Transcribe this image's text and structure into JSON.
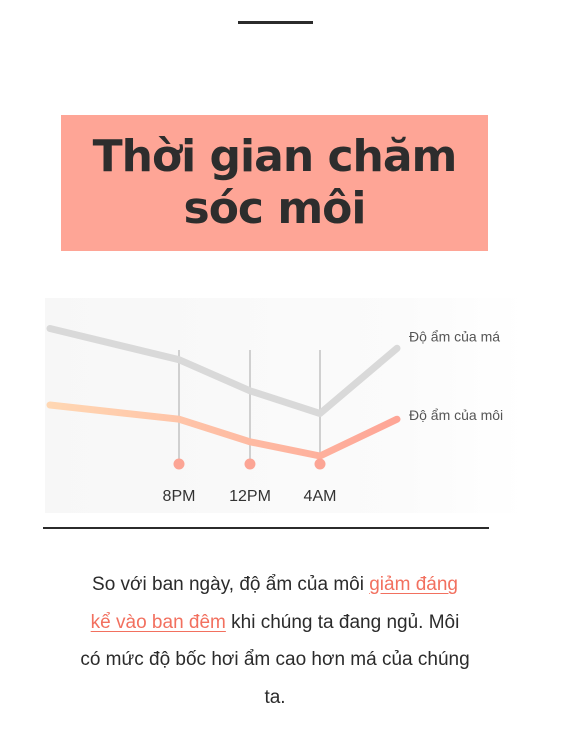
{
  "title": "Thời gian chăm sóc môi",
  "chart_data": {
    "type": "line",
    "title": "",
    "xlabel": "",
    "ylabel": "",
    "categories": [
      "8PM",
      "12PM",
      "4AM"
    ],
    "grid": false,
    "legend": "right",
    "series": [
      {
        "name": "Độ ẩm của má",
        "color": "#d9d9d9",
        "x": [
          0,
          1,
          2,
          3,
          4
        ],
        "y": [
          82,
          60,
          38,
          22,
          68
        ]
      },
      {
        "name": "Độ ẩm của môi",
        "color": "#fea596",
        "x": [
          0,
          1,
          2,
          3,
          4
        ],
        "y": [
          28,
          18,
          2,
          -8,
          18
        ]
      }
    ],
    "ylim": [
      -20,
      100
    ]
  },
  "body": {
    "text_before": "So với ban ngày, độ ẩm của môi ",
    "highlight": "giảm đáng kể vào ban đêm",
    "text_after": " khi chúng ta đang ngủ. Môi có mức độ bốc hơi ẩm cao hơn má của chúng ta.",
    "highlight_color": "#f2705f"
  }
}
